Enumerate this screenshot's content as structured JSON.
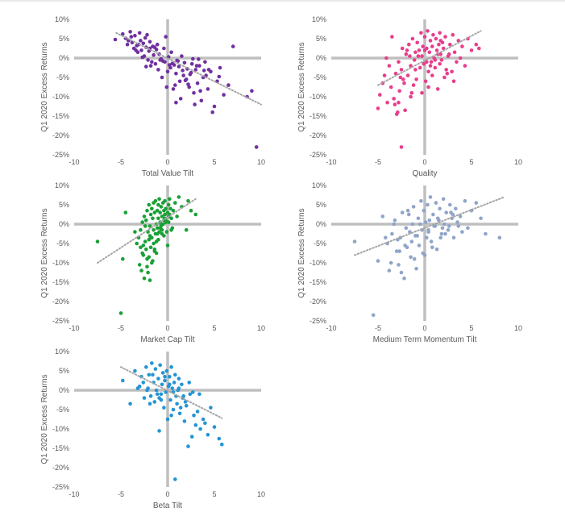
{
  "chart_data": [
    {
      "type": "scatter",
      "xlabel": "Total Value Tilt",
      "ylabel": "Q1 2020 Excess Returns",
      "xlim": [
        -10,
        10
      ],
      "ylim": [
        -25,
        10
      ],
      "xticks": [
        "-10",
        "-5",
        "0",
        "5",
        "10"
      ],
      "yticks": [
        "10%",
        "5%",
        "0%",
        "-5%",
        "-10%",
        "-15%",
        "-20%",
        "-25%"
      ],
      "color": "#7030a0",
      "trend": [
        [
          -5.5,
          6.5
        ],
        [
          10,
          -12
        ]
      ],
      "x": [
        -5.6,
        -4.8,
        -4.5,
        -4.3,
        -4.0,
        -3.8,
        -3.6,
        -3.5,
        -3.3,
        -3.2,
        -3.0,
        -2.9,
        -2.8,
        -2.6,
        -2.5,
        -2.4,
        -2.3,
        -2.1,
        -2.0,
        -1.9,
        -1.8,
        -1.6,
        -1.5,
        -1.3,
        -1.2,
        -1.0,
        -0.9,
        -0.7,
        -0.6,
        -0.4,
        -0.3,
        -0.2,
        0.0,
        0.1,
        0.3,
        0.4,
        0.6,
        0.7,
        0.9,
        1.0,
        1.2,
        1.3,
        1.5,
        1.6,
        1.8,
        2.0,
        2.1,
        2.3,
        2.4,
        2.6,
        2.8,
        3.0,
        3.2,
        3.4,
        3.6,
        3.8,
        4.0,
        4.3,
        4.6,
        5.0,
        5.3,
        5.6,
        6.0,
        6.5,
        7.0,
        8.5,
        9.0,
        9.5,
        -3.9,
        -3.1,
        -2.7,
        -2.2,
        -1.7,
        -1.1,
        -0.5,
        0.2,
        0.8,
        1.4,
        1.9,
        2.5,
        3.1,
        3.5,
        4.1,
        4.8,
        -4.2,
        -2.3,
        -1.4,
        -0.8,
        0.5,
        1.1,
        1.7,
        2.2,
        2.9,
        3.3,
        4.4,
        5.5,
        -3.4,
        -1.9,
        -0.1,
        0.9,
        2.7,
        3.9
      ],
      "y": [
        4.8,
        6.2,
        5.1,
        3.5,
        6.8,
        4.0,
        2.5,
        5.8,
        3.2,
        1.5,
        6.5,
        4.5,
        2.0,
        3.8,
        0.5,
        5.2,
        2.8,
        -0.5,
        1.8,
        4.2,
        -2.0,
        3.0,
        0.8,
        -1.5,
        2.2,
        -3.0,
        1.0,
        -0.2,
        -5.0,
        2.5,
        -1.0,
        5.5,
        -3.5,
        0.3,
        -2.5,
        1.5,
        -8.0,
        -1.8,
        -4.0,
        -0.6,
        -2.2,
        -6.0,
        0.5,
        -3.2,
        -1.2,
        -5.5,
        -2.8,
        -7.5,
        -4.2,
        -1.5,
        -9.0,
        -3.0,
        -6.5,
        -2.0,
        -11.0,
        -5.0,
        -1.0,
        -8.0,
        -3.5,
        -12.5,
        -6.0,
        -2.5,
        -9.5,
        -7.0,
        3.0,
        -10.0,
        -8.5,
        -23.0,
        5.5,
        3.5,
        0.2,
        6.0,
        -1.0,
        3.5,
        -0.8,
        -1.8,
        -7.0,
        -10.5,
        -5.8,
        -3.8,
        -2.0,
        -8.5,
        -4.5,
        -14.0,
        4.5,
        -2.2,
        2.8,
        -0.5,
        -1.4,
        -0.8,
        -4.5,
        -6.8,
        -12.0,
        -0.3,
        -3.0,
        -4.8,
        2.0,
        2.5,
        -7.5,
        -11.5,
        -0.2,
        -3.2
      ]
    },
    {
      "type": "scatter",
      "xlabel": "Quality",
      "ylabel": "Q1 2020 Excess Returns",
      "xlim": [
        -10,
        10
      ],
      "ylim": [
        -25,
        10
      ],
      "xticks": [
        "-10",
        "-5",
        "0",
        "5",
        "10"
      ],
      "yticks": [
        "10%",
        "5%",
        "0%",
        "-5%",
        "-10%",
        "-15%",
        "-20%",
        "-25%"
      ],
      "color": "#e83e8c",
      "trend": [
        [
          -5,
          -7
        ],
        [
          6,
          7
        ]
      ],
      "x": [
        -5.0,
        -4.8,
        -4.5,
        -4.3,
        -4.0,
        -3.8,
        -3.6,
        -3.5,
        -3.3,
        -3.1,
        -3.0,
        -2.8,
        -2.7,
        -2.5,
        -2.4,
        -2.2,
        -2.1,
        -2.0,
        -1.8,
        -1.7,
        -1.5,
        -1.4,
        -1.3,
        -1.1,
        -1.0,
        -0.9,
        -0.8,
        -0.6,
        -0.5,
        -0.4,
        -0.3,
        -0.2,
        -0.1,
        0.0,
        0.1,
        0.2,
        0.3,
        0.4,
        0.5,
        0.6,
        0.7,
        0.8,
        0.9,
        1.0,
        1.1,
        1.2,
        1.3,
        1.4,
        1.5,
        1.6,
        1.7,
        1.8,
        1.9,
        2.0,
        2.1,
        2.2,
        2.4,
        2.5,
        2.7,
        2.9,
        3.0,
        3.2,
        3.4,
        3.6,
        3.8,
        4.0,
        4.3,
        4.6,
        5.0,
        5.5,
        5.8,
        -3.2,
        -2.6,
        -1.9,
        -1.2,
        -0.7,
        0.2,
        0.8,
        1.4,
        2.3,
        3.1,
        -2.9,
        -1.6,
        -0.3,
        0.6,
        1.7,
        -4.1,
        -2.3,
        -1.0,
        0.4,
        1.1,
        2.6,
        -2.5,
        -1.5,
        0.0,
        1.6,
        -2.8
      ],
      "y": [
        -13.0,
        -9.5,
        -6.5,
        -4.5,
        -11.5,
        -2.0,
        -7.5,
        5.5,
        -10.5,
        -4.0,
        -14.5,
        -1.0,
        -8.5,
        -3.0,
        2.5,
        -6.5,
        -13.5,
        1.0,
        -4.5,
        3.5,
        -2.0,
        -9.0,
        5.0,
        -0.5,
        1.5,
        -5.5,
        4.0,
        2.0,
        -2.5,
        6.5,
        0.5,
        3.0,
        -1.5,
        5.5,
        -6.0,
        2.5,
        7.0,
        -3.5,
        1.5,
        4.5,
        -1.0,
        3.0,
        6.0,
        0.0,
        -2.5,
        5.0,
        2.0,
        -8.0,
        3.5,
        6.5,
        1.0,
        -0.5,
        4.0,
        2.5,
        -5.0,
        5.5,
        -4.0,
        0.5,
        3.5,
        -3.5,
        6.0,
        1.5,
        -1.0,
        4.5,
        0.0,
        3.0,
        -2.0,
        5.0,
        2.0,
        3.5,
        2.5,
        -12.0,
        -5.0,
        2.0,
        -7.0,
        0.5,
        -1.0,
        -4.5,
        1.0,
        -3.0,
        -6.0,
        -14.0,
        0.5,
        -9.0,
        -2.0,
        4.5,
        0.0,
        -5.5,
        -3.0,
        -7.5,
        -0.5,
        1.0,
        -23.0,
        -10.0,
        2.0,
        -1.5,
        -11.5
      ]
    },
    {
      "type": "scatter",
      "xlabel": "Market Cap Tilt",
      "ylabel": "Q1 2020 Excess Returns",
      "xlim": [
        -10,
        10
      ],
      "ylim": [
        -25,
        10
      ],
      "xticks": [
        "-10",
        "-5",
        "0",
        "5",
        "10"
      ],
      "yticks": [
        "10%",
        "5%",
        "0%",
        "-5%",
        "-10%",
        "-15%",
        "-20%",
        "-25%"
      ],
      "color": "#1aa036",
      "trend": [
        [
          -7.5,
          -10
        ],
        [
          3,
          6.5
        ]
      ],
      "x": [
        -7.5,
        -5.0,
        -4.8,
        -4.5,
        -3.5,
        -3.3,
        -3.0,
        -2.9,
        -2.8,
        -2.7,
        -2.6,
        -2.5,
        -2.5,
        -2.4,
        -2.3,
        -2.3,
        -2.2,
        -2.2,
        -2.1,
        -2.0,
        -2.0,
        -1.9,
        -1.9,
        -1.8,
        -1.8,
        -1.7,
        -1.7,
        -1.6,
        -1.6,
        -1.5,
        -1.5,
        -1.4,
        -1.4,
        -1.3,
        -1.3,
        -1.2,
        -1.2,
        -1.1,
        -1.1,
        -1.0,
        -1.0,
        -0.9,
        -0.9,
        -0.8,
        -0.8,
        -0.7,
        -0.7,
        -0.6,
        -0.6,
        -0.5,
        -0.5,
        -0.4,
        -0.4,
        -0.3,
        -0.3,
        -0.2,
        -0.2,
        -0.1,
        0.0,
        0.0,
        0.1,
        0.1,
        0.2,
        0.2,
        0.3,
        0.4,
        0.5,
        0.6,
        0.8,
        1.0,
        1.2,
        1.5,
        2.0,
        2.2,
        2.5,
        3.0,
        -3.1,
        -2.7,
        -2.4,
        -2.1,
        -1.9,
        -1.7,
        -1.5,
        -1.2,
        -1.0,
        -0.8,
        -0.6,
        -0.4,
        -0.2,
        0.1,
        0.4,
        -2.6,
        -2.2,
        -1.8,
        -1.4,
        -1.1,
        -0.7,
        -0.3,
        -2.9,
        -2.0
      ],
      "y": [
        -4.5,
        -23.0,
        -9.0,
        3.0,
        -2.0,
        -5.0,
        -10.5,
        -1.5,
        -12.0,
        0.5,
        -8.0,
        2.0,
        -14.0,
        -4.5,
        1.0,
        -6.5,
        3.5,
        -11.0,
        -2.0,
        -8.5,
        5.0,
        -0.5,
        -14.5,
        2.5,
        -6.0,
        4.0,
        -3.5,
        -9.5,
        1.5,
        5.5,
        -1.5,
        3.0,
        -7.0,
        -2.5,
        6.0,
        0.0,
        -4.5,
        3.5,
        -1.0,
        5.0,
        1.5,
        -2.0,
        6.5,
        0.5,
        3.0,
        -0.5,
        4.5,
        2.0,
        -1.5,
        5.5,
        0.0,
        3.5,
        -3.0,
        2.5,
        6.0,
        1.0,
        4.0,
        -2.0,
        3.0,
        -5.5,
        5.0,
        0.5,
        2.5,
        6.5,
        4.0,
        1.5,
        -1.0,
        3.5,
        5.5,
        2.0,
        7.0,
        4.5,
        -1.5,
        6.0,
        3.5,
        2.5,
        -3.5,
        -7.5,
        -0.5,
        -12.5,
        -3.0,
        -10.0,
        -5.0,
        -7.5,
        -4.0,
        -1.0,
        -2.5,
        1.0,
        0.5,
        2.0,
        -1.5,
        -5.5,
        -9.0,
        -3.5,
        -6.5,
        -2.5,
        0.0,
        1.5,
        -6.0,
        -4.0
      ]
    },
    {
      "type": "scatter",
      "xlabel": "Medium Term Momentum Tilt",
      "ylabel": "Q1 2020 Excess Returns",
      "xlim": [
        -10,
        10
      ],
      "ylim": [
        -25,
        10
      ],
      "xticks": [
        "-10",
        "-5",
        "0",
        "5",
        "10"
      ],
      "yticks": [
        "10%",
        "5%",
        "0%",
        "-5%",
        "-10%",
        "-15%",
        "-20%",
        "-25%"
      ],
      "color": "#8fa5c9",
      "trend": [
        [
          -7.5,
          -8
        ],
        [
          8.5,
          7
        ]
      ],
      "x": [
        -7.5,
        -5.5,
        -5.0,
        -4.5,
        -4.0,
        -3.8,
        -3.5,
        -3.2,
        -3.0,
        -2.8,
        -2.6,
        -2.4,
        -2.2,
        -2.0,
        -1.9,
        -1.7,
        -1.5,
        -1.3,
        -1.2,
        -1.0,
        -0.9,
        -0.7,
        -0.6,
        -0.4,
        -0.3,
        -0.1,
        0.0,
        0.1,
        0.3,
        0.4,
        0.6,
        0.7,
        0.9,
        1.0,
        1.2,
        1.3,
        1.5,
        1.6,
        1.8,
        2.0,
        2.1,
        2.3,
        2.5,
        2.7,
        2.9,
        3.1,
        3.3,
        3.5,
        3.8,
        4.0,
        4.3,
        4.6,
        5.0,
        5.5,
        6.0,
        6.5,
        8.0,
        -4.2,
        -3.3,
        -2.5,
        -1.8,
        -1.1,
        -0.5,
        0.2,
        0.8,
        1.4,
        2.2,
        2.8,
        3.6,
        -2.9,
        -1.6,
        -0.2,
        1.1,
        1.9,
        3.0,
        -3.6,
        -2.1,
        -0.8,
        0.5,
        1.7,
        2.6,
        -1.4,
        0.4,
        -2.7
      ],
      "y": [
        -4.5,
        -23.5,
        -9.5,
        2.0,
        -5.0,
        -12.0,
        -2.5,
        1.0,
        -7.0,
        -10.5,
        -3.5,
        3.0,
        -14.0,
        -1.0,
        -6.0,
        2.5,
        -8.5,
        0.0,
        4.5,
        -3.0,
        -11.5,
        1.5,
        -5.5,
        6.0,
        -1.5,
        3.5,
        -8.0,
        0.5,
        5.0,
        -2.0,
        7.0,
        -4.5,
        2.5,
        -0.5,
        5.5,
        -6.5,
        1.0,
        4.0,
        -2.5,
        6.5,
        0.0,
        3.0,
        -1.5,
        5.0,
        1.5,
        -3.5,
        4.0,
        0.5,
        2.0,
        -2.0,
        6.0,
        -1.0,
        3.5,
        5.5,
        1.5,
        -2.5,
        -3.5,
        -3.5,
        0.0,
        -12.5,
        3.5,
        -9.0,
        0.0,
        -3.5,
        -6.0,
        1.5,
        -2.5,
        3.0,
        -0.5,
        -4.0,
        -2.0,
        -7.5,
        -0.5,
        -1.0,
        2.5,
        -10.0,
        -5.5,
        -3.0,
        1.0,
        -3.5,
        -0.5,
        -4.5,
        -1.5,
        -7.0
      ]
    },
    {
      "type": "scatter",
      "xlabel": "Beta Tilt",
      "ylabel": "Q1 2020 Excess Returns",
      "xlim": [
        -10,
        10
      ],
      "ylim": [
        -25,
        10
      ],
      "xticks": [
        "-10",
        "-5",
        "0",
        "5",
        "10"
      ],
      "yticks": [
        "10%",
        "5%",
        "0%",
        "-5%",
        "-10%",
        "-15%",
        "-20%",
        "-25%"
      ],
      "color": "#2495d4",
      "trend": [
        [
          -5,
          6
        ],
        [
          5.8,
          -7.2
        ]
      ],
      "x": [
        -4.8,
        -4.0,
        -3.5,
        -3.0,
        -2.8,
        -2.5,
        -2.3,
        -2.1,
        -2.0,
        -1.8,
        -1.7,
        -1.5,
        -1.4,
        -1.3,
        -1.2,
        -1.0,
        -0.9,
        -0.8,
        -0.7,
        -0.6,
        -0.5,
        -0.4,
        -0.3,
        -0.2,
        -0.1,
        0.0,
        0.1,
        0.2,
        0.3,
        0.4,
        0.5,
        0.6,
        0.7,
        0.8,
        0.9,
        1.0,
        1.1,
        1.2,
        1.3,
        1.5,
        1.6,
        1.8,
        2.0,
        2.2,
        2.4,
        2.6,
        2.8,
        3.0,
        3.2,
        3.5,
        3.8,
        4.0,
        4.3,
        4.6,
        5.0,
        5.5,
        5.8,
        0.8,
        -2.6,
        -1.9,
        -1.1,
        -0.3,
        0.4,
        1.2,
        1.9,
        2.7,
        -2.2,
        -1.6,
        -0.7,
        0.2,
        1.4,
        2.3,
        3.4,
        -3.2,
        -0.9,
        0.6,
        1.7
      ],
      "y": [
        2.5,
        -3.5,
        5.0,
        1.0,
        3.5,
        -2.0,
        6.0,
        0.5,
        4.0,
        -1.5,
        7.0,
        2.0,
        -3.0,
        5.5,
        0.0,
        3.0,
        -10.5,
        6.5,
        -1.0,
        1.5,
        4.5,
        -4.5,
        2.5,
        -0.5,
        5.0,
        -7.5,
        1.0,
        3.5,
        -2.5,
        6.0,
        0.5,
        -5.0,
        2.0,
        4.0,
        -1.5,
        -3.5,
        0.0,
        3.0,
        -6.0,
        1.5,
        -2.0,
        -8.0,
        -4.0,
        -14.5,
        -1.0,
        -12.0,
        -6.5,
        -9.0,
        -5.5,
        -10.0,
        -7.5,
        -8.5,
        -11.5,
        -4.5,
        -9.5,
        -12.5,
        -14.0,
        -23.0,
        2.0,
        -3.5,
        -1.0,
        3.5,
        -6.5,
        0.5,
        -3.0,
        -0.5,
        0.0,
        4.0,
        -2.5,
        1.5,
        -4.5,
        2.0,
        -1.0,
        0.5,
        -2.0,
        -0.5,
        -1.5
      ]
    }
  ]
}
